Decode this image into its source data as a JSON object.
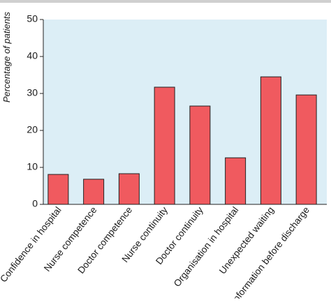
{
  "chart_data": {
    "type": "bar",
    "y_label": "Percentage of patients",
    "categories": [
      "Confidence in hospital",
      "Nurse competence",
      "Doctor competence",
      "Nurse continuity",
      "Doctor continuity",
      "Organisation in hospital",
      "Unexpected waiting",
      "Information before discharge"
    ],
    "values": [
      8.1,
      6.8,
      8.3,
      31.7,
      26.6,
      12.6,
      34.5,
      29.6
    ],
    "color": "#f05a5f",
    "ylim": [
      0,
      50
    ],
    "yticks": [
      0,
      10,
      20,
      30,
      40,
      50
    ]
  }
}
